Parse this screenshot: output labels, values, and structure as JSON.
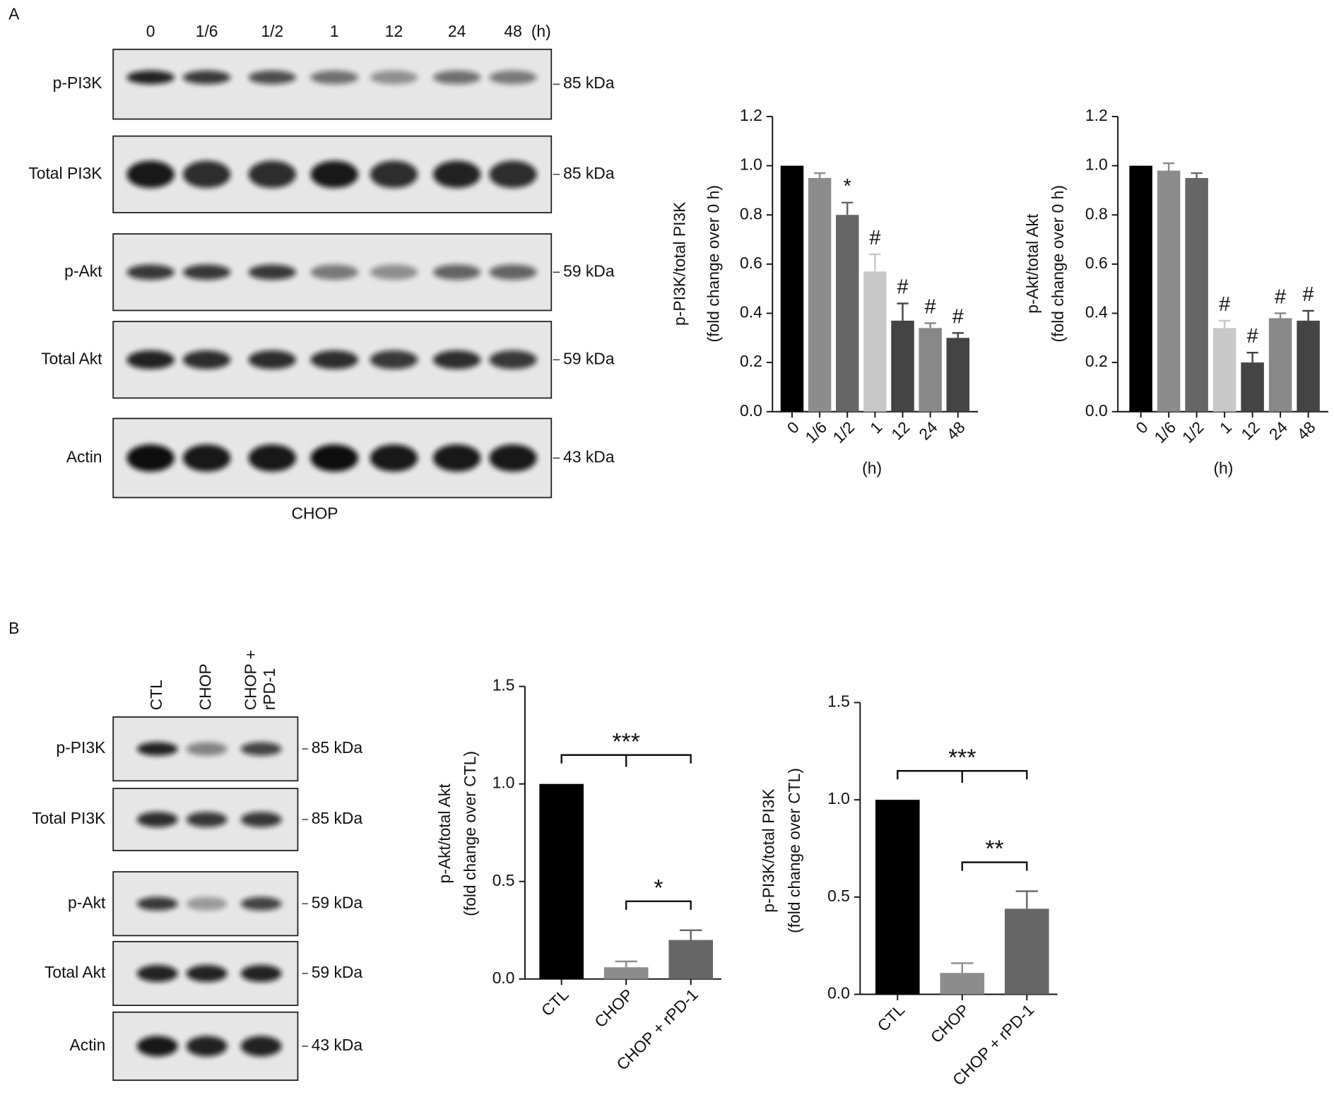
{
  "panel_labels": [
    "A",
    "B"
  ],
  "blot_a": {
    "lanes": [
      "0",
      "1/6",
      "1/2",
      "1",
      "12",
      "24",
      "48"
    ],
    "unit": "(h)",
    "treatment": "CHOP",
    "rows": [
      {
        "label": "p-PI3K",
        "size": "85 kDa"
      },
      {
        "label": "Total PI3K",
        "size": "85 kDa"
      },
      {
        "label": "p-Akt",
        "size": "59 kDa"
      },
      {
        "label": "Total Akt",
        "size": "59 kDa"
      },
      {
        "label": "Actin",
        "size": "43 kDa"
      }
    ]
  },
  "blot_b": {
    "lanes": [
      [
        "CTL"
      ],
      [
        "CHOP"
      ],
      [
        "CHOP +",
        "rPD-1"
      ]
    ],
    "rows": [
      {
        "label": "p-PI3K",
        "size": "85 kDa"
      },
      {
        "label": "Total PI3K",
        "size": "85 kDa"
      },
      {
        "label": "p-Akt",
        "size": "59 kDa"
      },
      {
        "label": "Total Akt",
        "size": "59 kDa"
      },
      {
        "label": "Actin",
        "size": "43 kDa"
      }
    ]
  },
  "chart_data": [
    {
      "type": "bar",
      "y_label": [
        "p-PI3K/total PI3K",
        "(fold change over 0 h)"
      ],
      "x_label": "(h)",
      "categories": [
        "0",
        "1/6",
        "1/2",
        "1",
        "12",
        "24",
        "48"
      ],
      "values": [
        1.0,
        0.95,
        0.8,
        0.57,
        0.37,
        0.34,
        0.3
      ],
      "errors": [
        0,
        0.02,
        0.05,
        0.07,
        0.07,
        0.02,
        0.02
      ],
      "colors": [
        "#000000",
        "#8c8c8c",
        "#666666",
        "#c8c8c8",
        "#444444",
        "#888888",
        "#444444"
      ],
      "annotations": [
        null,
        null,
        "*",
        "#",
        "#",
        "#",
        "#"
      ],
      "ylim": [
        0,
        1.2
      ],
      "yticks": [
        {
          "value": 0,
          "label": "0.0"
        },
        {
          "value": 0.2,
          "label": "0.2"
        },
        {
          "value": 0.4,
          "label": "0.4"
        },
        {
          "value": 0.6,
          "label": "0.6"
        },
        {
          "value": 0.8,
          "label": "0.8"
        },
        {
          "value": 1.0,
          "label": "1.0"
        },
        {
          "value": 1.2,
          "label": "1.2"
        }
      ]
    },
    {
      "type": "bar",
      "y_label": [
        "p-Akt/total Akt",
        "(fold change over 0 h)"
      ],
      "x_label": "(h)",
      "categories": [
        "0",
        "1/6",
        "1/2",
        "1",
        "12",
        "24",
        "48"
      ],
      "values": [
        1.0,
        0.98,
        0.95,
        0.34,
        0.2,
        0.38,
        0.37
      ],
      "errors": [
        0,
        0.03,
        0.02,
        0.03,
        0.04,
        0.02,
        0.04
      ],
      "colors": [
        "#000000",
        "#8c8c8c",
        "#666666",
        "#c8c8c8",
        "#444444",
        "#888888",
        "#444444"
      ],
      "annotations": [
        null,
        null,
        null,
        "#",
        "#",
        "#",
        "#"
      ],
      "ylim": [
        0,
        1.2
      ],
      "yticks": [
        {
          "value": 0,
          "label": "0.0"
        },
        {
          "value": 0.2,
          "label": "0.2"
        },
        {
          "value": 0.4,
          "label": "0.4"
        },
        {
          "value": 0.6,
          "label": "0.6"
        },
        {
          "value": 0.8,
          "label": "0.8"
        },
        {
          "value": 1.0,
          "label": "1.0"
        },
        {
          "value": 1.2,
          "label": "1.2"
        }
      ]
    },
    {
      "type": "bar",
      "y_label": [
        "p-Akt/total Akt",
        "(fold change over CTL)"
      ],
      "categories": [
        "CTL",
        "CHOP",
        "CHOP + rPD-1"
      ],
      "values": [
        1.0,
        0.06,
        0.2
      ],
      "errors": [
        0,
        0.03,
        0.05
      ],
      "colors": [
        "#000000",
        "#8c8c8c",
        "#666666"
      ],
      "significance": [
        {
          "label": "***",
          "span": [
            "CTL",
            "CHOP + rPD-1"
          ]
        },
        {
          "label": "*",
          "span": [
            "CHOP",
            "CHOP + rPD-1"
          ]
        }
      ],
      "ylim": [
        0,
        1.5
      ],
      "yticks": [
        {
          "value": 0,
          "label": "0.0"
        },
        {
          "value": 0.5,
          "label": "0.5"
        },
        {
          "value": 1.0,
          "label": "1.0"
        },
        {
          "value": 1.5,
          "label": "1.5"
        }
      ]
    },
    {
      "type": "bar",
      "y_label": [
        "p-PI3K/total PI3K",
        "(fold change over CTL)"
      ],
      "categories": [
        "CTL",
        "CHOP",
        "CHOP + rPD-1"
      ],
      "values": [
        1.0,
        0.11,
        0.44
      ],
      "errors": [
        0,
        0.05,
        0.09
      ],
      "colors": [
        "#000000",
        "#8c8c8c",
        "#666666"
      ],
      "significance": [
        {
          "label": "***",
          "span": [
            "CTL",
            "CHOP + rPD-1"
          ]
        },
        {
          "label": "**",
          "span": [
            "CHOP",
            "CHOP + rPD-1"
          ]
        }
      ],
      "ylim": [
        0,
        1.5
      ],
      "yticks": [
        {
          "value": 0,
          "label": "0.0"
        },
        {
          "value": 0.5,
          "label": "0.5"
        },
        {
          "value": 1.0,
          "label": "1.0"
        },
        {
          "value": 1.5,
          "label": "1.5"
        }
      ]
    }
  ]
}
